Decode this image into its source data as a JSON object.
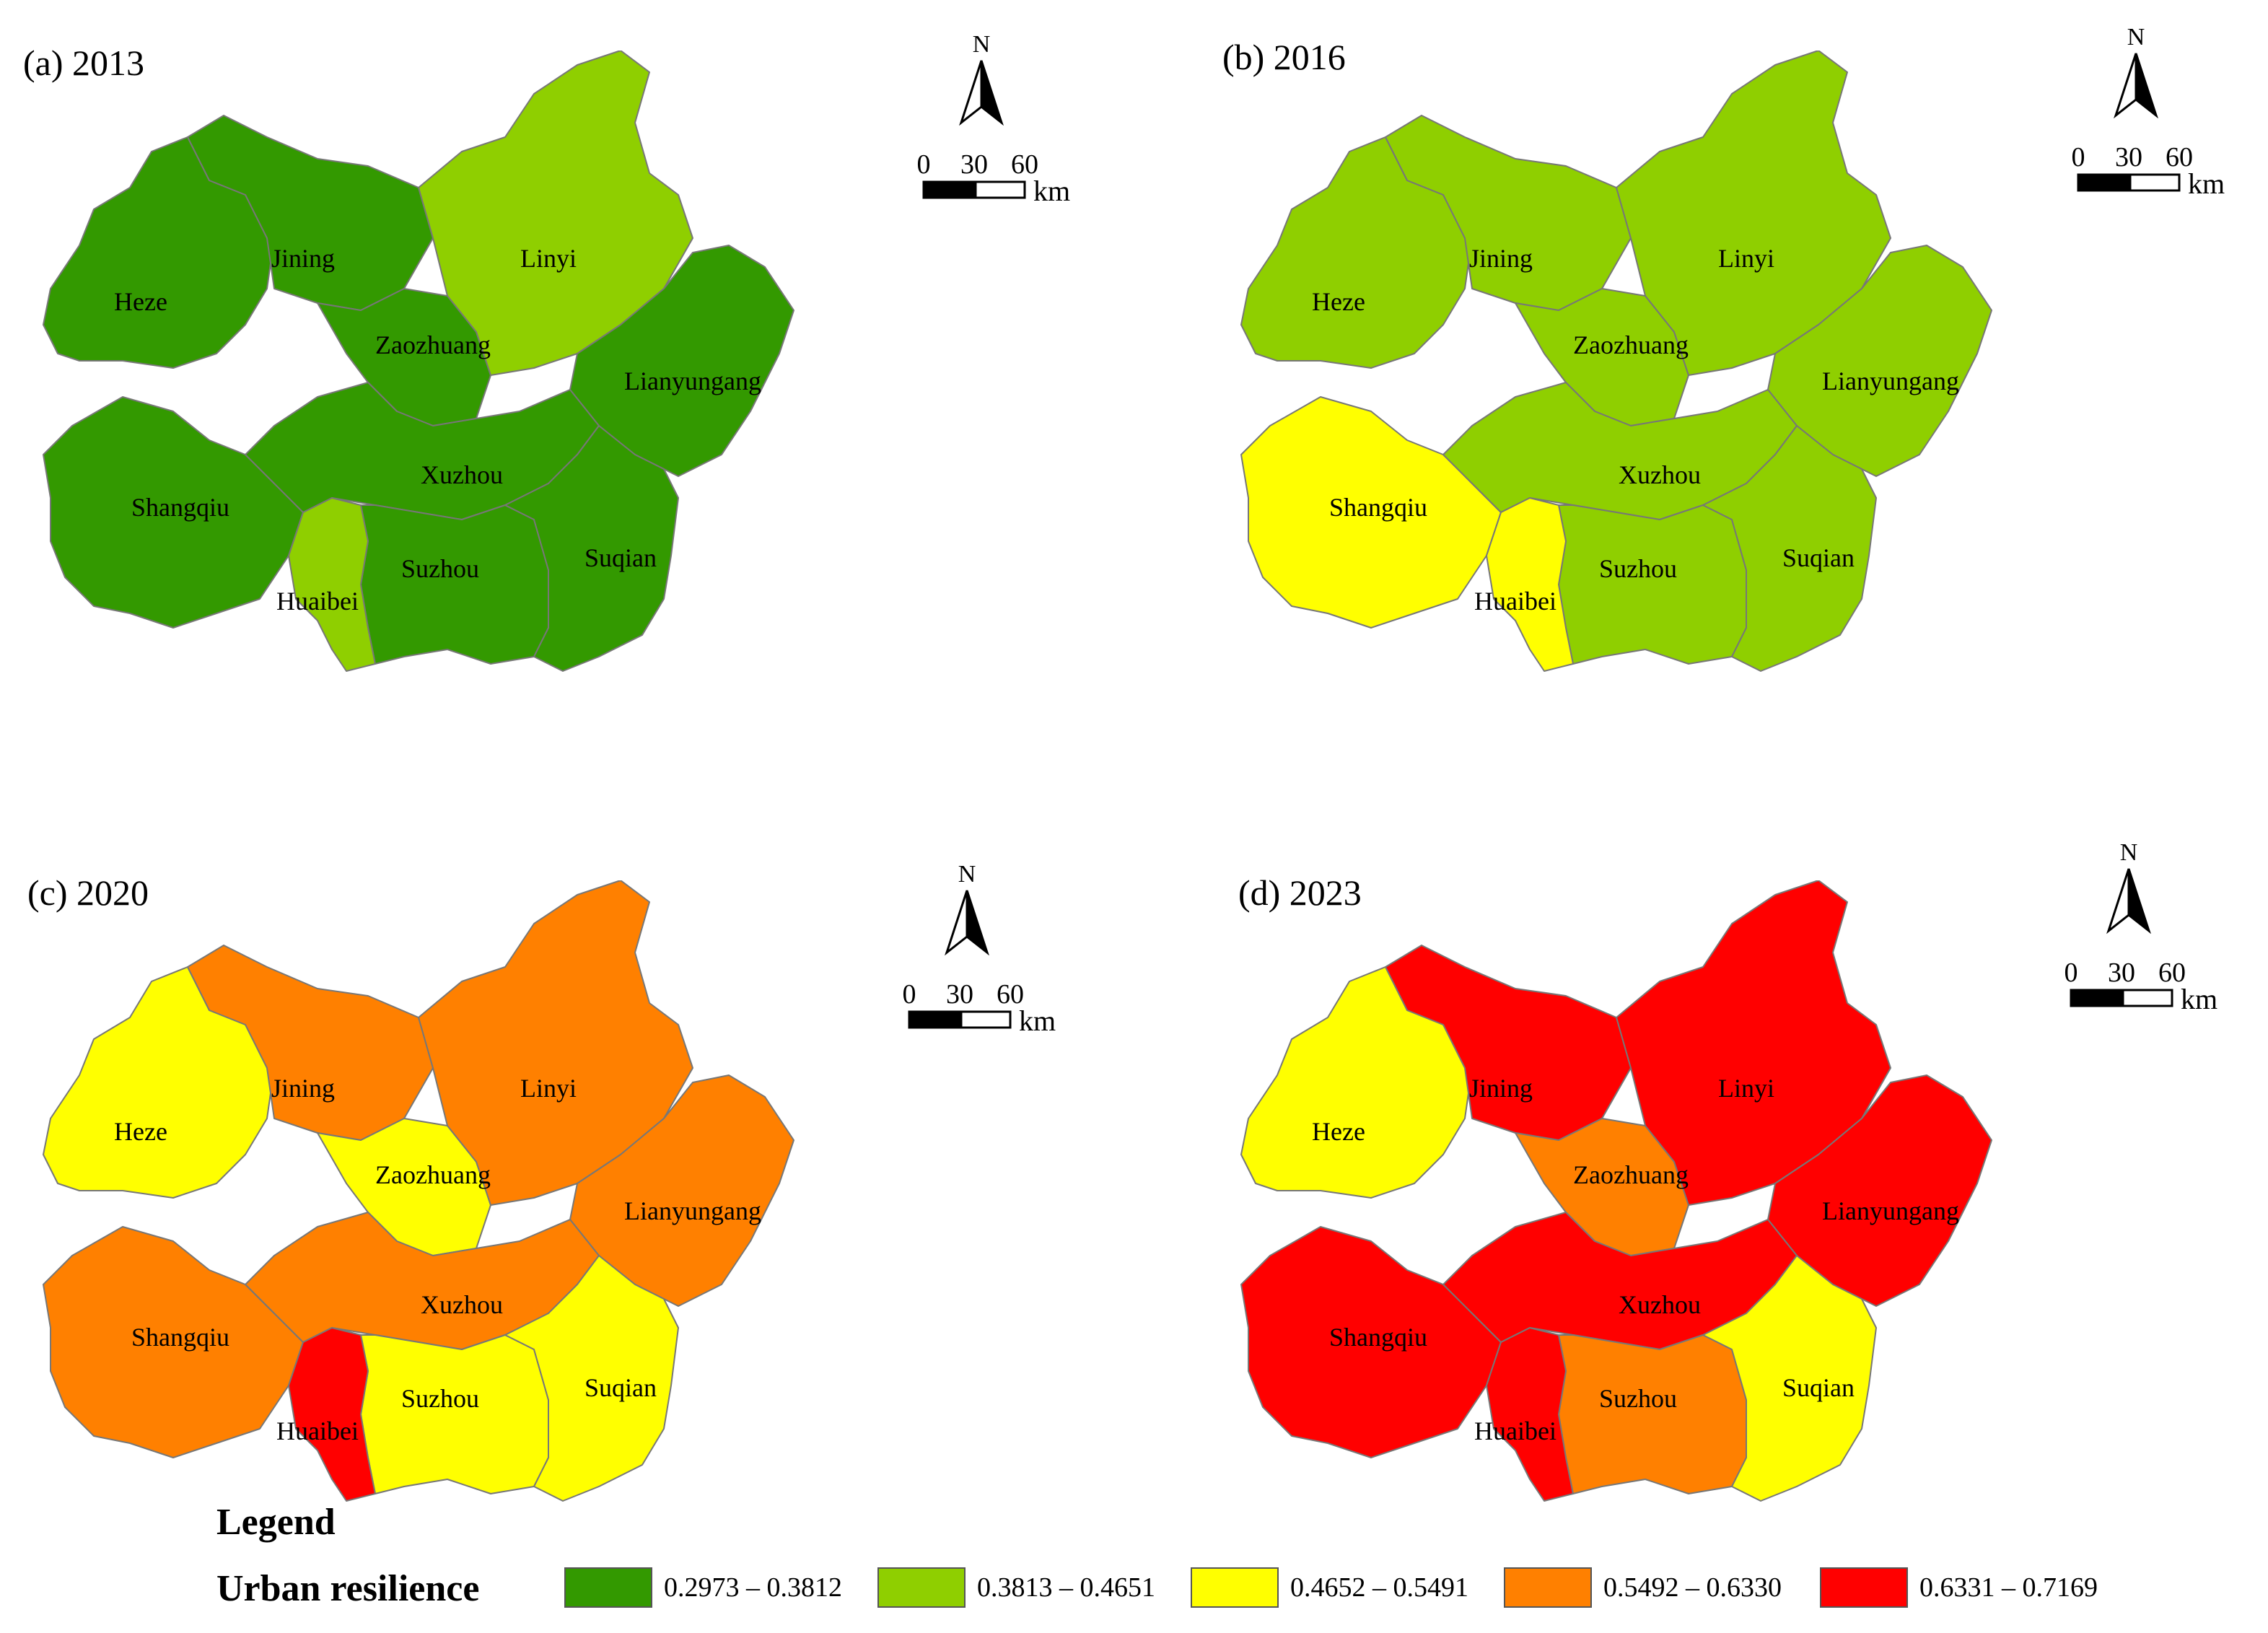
{
  "legend": {
    "title": "Legend",
    "subtitle": "Urban resilience",
    "classes": [
      {
        "label": "0.2973 – 0.3812",
        "color": "#339900"
      },
      {
        "label": "0.3813 – 0.4651",
        "color": "#8fcf00"
      },
      {
        "label": "0.4652 – 0.5491",
        "color": "#ffff00"
      },
      {
        "label": "0.5492 – 0.6330",
        "color": "#ff8000"
      },
      {
        "label": "0.6331 – 0.7169",
        "color": "#ff0000"
      }
    ]
  },
  "north_label": "N",
  "scale": {
    "ticks": [
      "0",
      "30",
      "60"
    ],
    "unit": "km"
  },
  "panels": [
    {
      "id": "a",
      "title": "(a) 2013",
      "classes": {
        "Heze": 0,
        "Jining": 0,
        "Zaozhuang": 0,
        "Linyi": 1,
        "Lianyungang": 0,
        "Shangqiu": 0,
        "Xuzhou": 0,
        "Suzhou": 0,
        "Huaibei": 1,
        "Suqian": 0
      }
    },
    {
      "id": "b",
      "title": "(b) 2016",
      "classes": {
        "Heze": 1,
        "Jining": 1,
        "Zaozhuang": 1,
        "Linyi": 1,
        "Lianyungang": 1,
        "Shangqiu": 2,
        "Xuzhou": 1,
        "Suzhou": 1,
        "Huaibei": 2,
        "Suqian": 1
      }
    },
    {
      "id": "c",
      "title": "(c) 2020",
      "classes": {
        "Heze": 2,
        "Jining": 3,
        "Zaozhuang": 2,
        "Linyi": 3,
        "Lianyungang": 3,
        "Shangqiu": 3,
        "Xuzhou": 3,
        "Suzhou": 2,
        "Huaibei": 4,
        "Suqian": 2
      }
    },
    {
      "id": "d",
      "title": "(d) 2023",
      "classes": {
        "Heze": 2,
        "Jining": 4,
        "Zaozhuang": 3,
        "Linyi": 4,
        "Lianyungang": 4,
        "Shangqiu": 4,
        "Xuzhou": 4,
        "Suzhou": 3,
        "Huaibei": 4,
        "Suqian": 2
      }
    }
  ],
  "cities": [
    "Heze",
    "Jining",
    "Zaozhuang",
    "Linyi",
    "Lianyungang",
    "Shangqiu",
    "Xuzhou",
    "Suzhou",
    "Huaibei",
    "Suqian"
  ]
}
